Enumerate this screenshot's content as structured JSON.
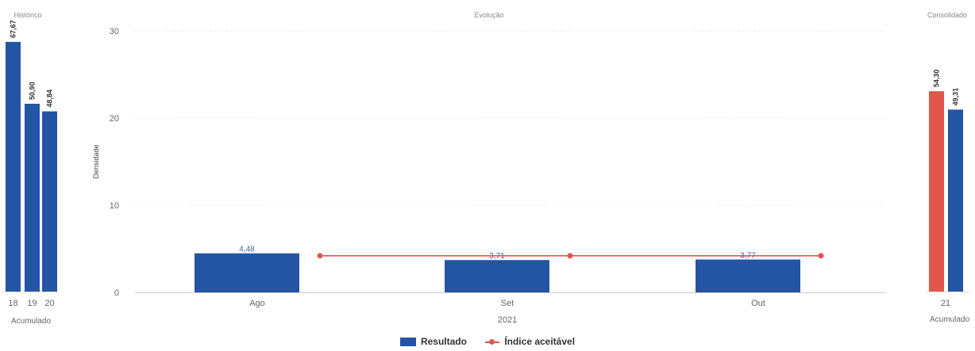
{
  "colors": {
    "resultado": "#2455a4",
    "indice": "#e1574c",
    "consolidado_primary": "#e1574c",
    "consolidado_secondary": "#2455a4",
    "grid": "#e4e4e4",
    "axis_text": "#666666"
  },
  "legend": {
    "resultado": "Resultado",
    "indice": "Índice aceitável"
  },
  "chart_data": [
    {
      "type": "bar",
      "title": "Histórico",
      "categories": [
        "18",
        "19",
        "20"
      ],
      "values": [
        67.67,
        50.9,
        48.84
      ],
      "value_labels": [
        "67,67",
        "50,90",
        "48,84"
      ],
      "xlabel": "Acumulado",
      "ylim": [
        0,
        70
      ],
      "series_color": "#2455a4"
    },
    {
      "type": "bar",
      "title": "Evolução",
      "categories": [
        "Ago",
        "Set",
        "Out"
      ],
      "xlabel": "2021",
      "ylabel": "Densidade",
      "ylim": [
        0,
        30
      ],
      "yticks": [
        0,
        10,
        20,
        30
      ],
      "grid": true,
      "legend_position": "bottom",
      "series": [
        {
          "name": "Resultado",
          "kind": "bar",
          "values": [
            4.48,
            3.71,
            3.77
          ],
          "value_labels": [
            "4,48",
            "3,71",
            "3,77"
          ]
        },
        {
          "name": "Índice aceitável",
          "kind": "line",
          "values": [
            4.2,
            4.2,
            4.2
          ]
        }
      ]
    },
    {
      "type": "bar",
      "title": "Consolidado",
      "categories": [
        "21"
      ],
      "xlabel": "Acumulado",
      "ylim": [
        0,
        70
      ],
      "series": [
        {
          "values": [
            54.3
          ],
          "value_labels": [
            "54,30"
          ],
          "color": "#e1574c"
        },
        {
          "values": [
            49.31
          ],
          "value_labels": [
            "49,31"
          ],
          "color": "#2455a4"
        }
      ]
    }
  ]
}
